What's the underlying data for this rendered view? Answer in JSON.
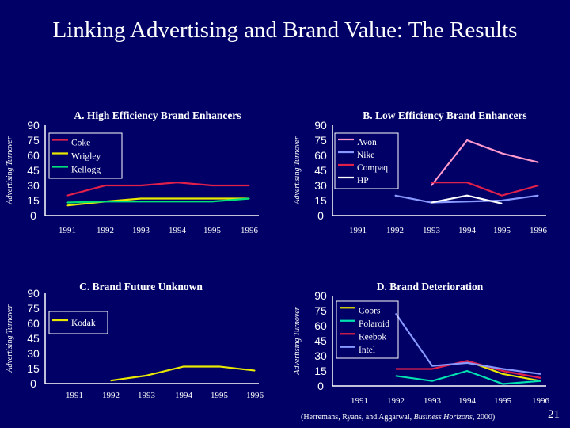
{
  "slide": {
    "title": "Linking Advertising and Brand Value:  The Results",
    "citation_prefix": "(Herremans, Ryans, and Aggarwal, ",
    "citation_source": "Business Horizons",
    "citation_suffix": ", 2000)",
    "page_number": "21"
  },
  "colors": {
    "background": "#000066",
    "axis": "#ffffff",
    "legend_border": "#ffffff"
  },
  "chart_data": [
    {
      "type": "line",
      "title": "A. High Efficiency Brand Enhancers",
      "ylabel": "Advertising Turnover",
      "xlabel": "",
      "x": [
        "1991",
        "1992",
        "1993",
        "1994",
        "1995",
        "1996"
      ],
      "yticks": [
        "90",
        "75",
        "60",
        "45",
        "30",
        "15",
        "0"
      ],
      "ylim": [
        0,
        90
      ],
      "series": [
        {
          "name": "Coke",
          "color": "#e0204a",
          "values": [
            20,
            30,
            30,
            33,
            30,
            30
          ]
        },
        {
          "name": "Wrigley",
          "color": "#e8e800",
          "values": [
            10,
            14,
            17,
            17,
            17,
            17
          ]
        },
        {
          "name": "Kellogg",
          "color": "#00e07a",
          "values": [
            13,
            14,
            14,
            14,
            14,
            17
          ]
        }
      ]
    },
    {
      "type": "line",
      "title": "B. Low Efficiency Brand Enhancers",
      "ylabel": "Advertising Turnover",
      "xlabel": "",
      "x": [
        "1991",
        "1992",
        "1993",
        "1994",
        "1995",
        "1996"
      ],
      "yticks": [
        "90",
        "75",
        "60",
        "45",
        "30",
        "15",
        "0"
      ],
      "ylim": [
        0,
        90
      ],
      "series": [
        {
          "name": "Avon",
          "color": "#ff99cc",
          "values": [
            null,
            null,
            30,
            75,
            62,
            53
          ]
        },
        {
          "name": "Nike",
          "color": "#8899ff",
          "values": [
            null,
            20,
            13,
            14,
            15,
            20
          ]
        },
        {
          "name": "Compaq",
          "color": "#e0204a",
          "values": [
            null,
            null,
            33,
            33,
            20,
            30
          ]
        },
        {
          "name": "HP",
          "color": "#ffffff",
          "values": [
            null,
            null,
            13,
            20,
            12,
            null
          ]
        }
      ]
    },
    {
      "type": "line",
      "title": "C. Brand Future Unknown",
      "ylabel": "Advertising Turnover",
      "xlabel": "",
      "x": [
        "1991",
        "1992",
        "1993",
        "1994",
        "1995",
        "1996"
      ],
      "yticks": [
        "90",
        "75",
        "60",
        "45",
        "30",
        "15",
        "0"
      ],
      "ylim": [
        0,
        90
      ],
      "series": [
        {
          "name": "Kodak",
          "color": "#e8e800",
          "values": [
            null,
            3,
            8,
            17,
            17,
            13
          ]
        }
      ]
    },
    {
      "type": "line",
      "title": "D. Brand Deterioration",
      "ylabel": "Advertising Turnover",
      "xlabel": "",
      "x": [
        "1991",
        "1992",
        "1993",
        "1994",
        "1995",
        "1996"
      ],
      "yticks": [
        "90",
        "75",
        "60",
        "45",
        "30",
        "15",
        "0"
      ],
      "ylim": [
        0,
        90
      ],
      "series": [
        {
          "name": "Coors",
          "color": "#e8e800",
          "values": [
            null,
            null,
            null,
            25,
            12,
            5
          ]
        },
        {
          "name": "Polaroid",
          "color": "#00e0b0",
          "values": [
            null,
            10,
            5,
            15,
            2,
            5
          ]
        },
        {
          "name": "Reebok",
          "color": "#e0204a",
          "values": [
            null,
            17,
            17,
            25,
            15,
            8
          ]
        },
        {
          "name": "Intel",
          "color": "#8899ff",
          "values": [
            null,
            72,
            20,
            23,
            17,
            12
          ]
        }
      ]
    }
  ]
}
